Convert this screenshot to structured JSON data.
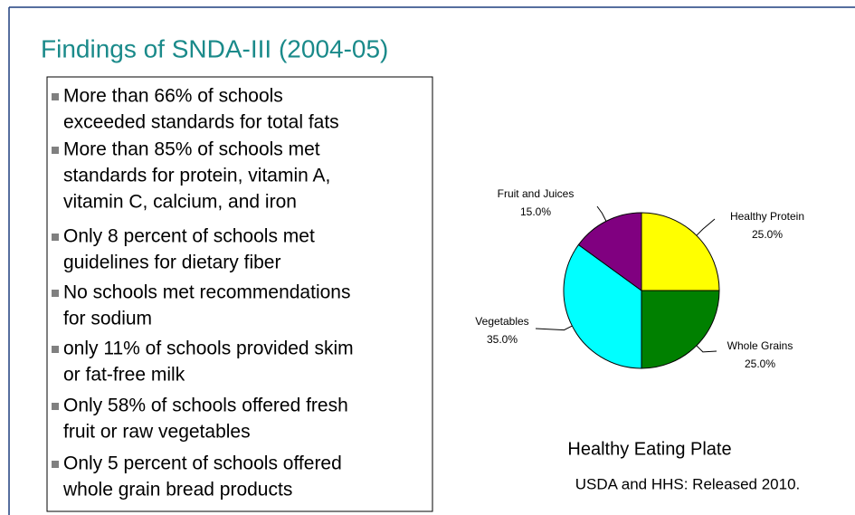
{
  "slide": {
    "title": "Findings of SNDA-III (2004-05)",
    "bullets": [
      [
        "More than 66% of schools",
        "exceeded standards for total fats"
      ],
      [
        "More than 85% of schools met",
        "standards for protein, vitamin A,",
        "vitamin C, calcium, and iron"
      ],
      [
        "Only 8 percent of schools met",
        "guidelines for dietary fiber"
      ],
      [
        "No schools met recommendations",
        "for sodium"
      ],
      [
        "only 11% of schools provided skim",
        "or fat-free milk"
      ],
      [
        "Only 58% of schools offered fresh",
        "fruit or raw vegetables"
      ],
      [
        "Only 5 percent of schools offered",
        "whole grain bread products"
      ]
    ]
  },
  "chart_data": {
    "type": "pie",
    "title": "Healthy Eating Plate",
    "subtitle": "USDA and HHS:  Released 2010.",
    "categories": [
      "Healthy Protein",
      "Whole Grains",
      "Vegetables",
      "Fruit and Juices"
    ],
    "values": [
      25,
      25,
      35,
      15
    ],
    "value_labels": [
      "25.0%",
      "25.0%",
      "35.0%",
      "15.0%"
    ],
    "colors": [
      "#ffff00",
      "#008000",
      "#00ffff",
      "#800080"
    ]
  }
}
